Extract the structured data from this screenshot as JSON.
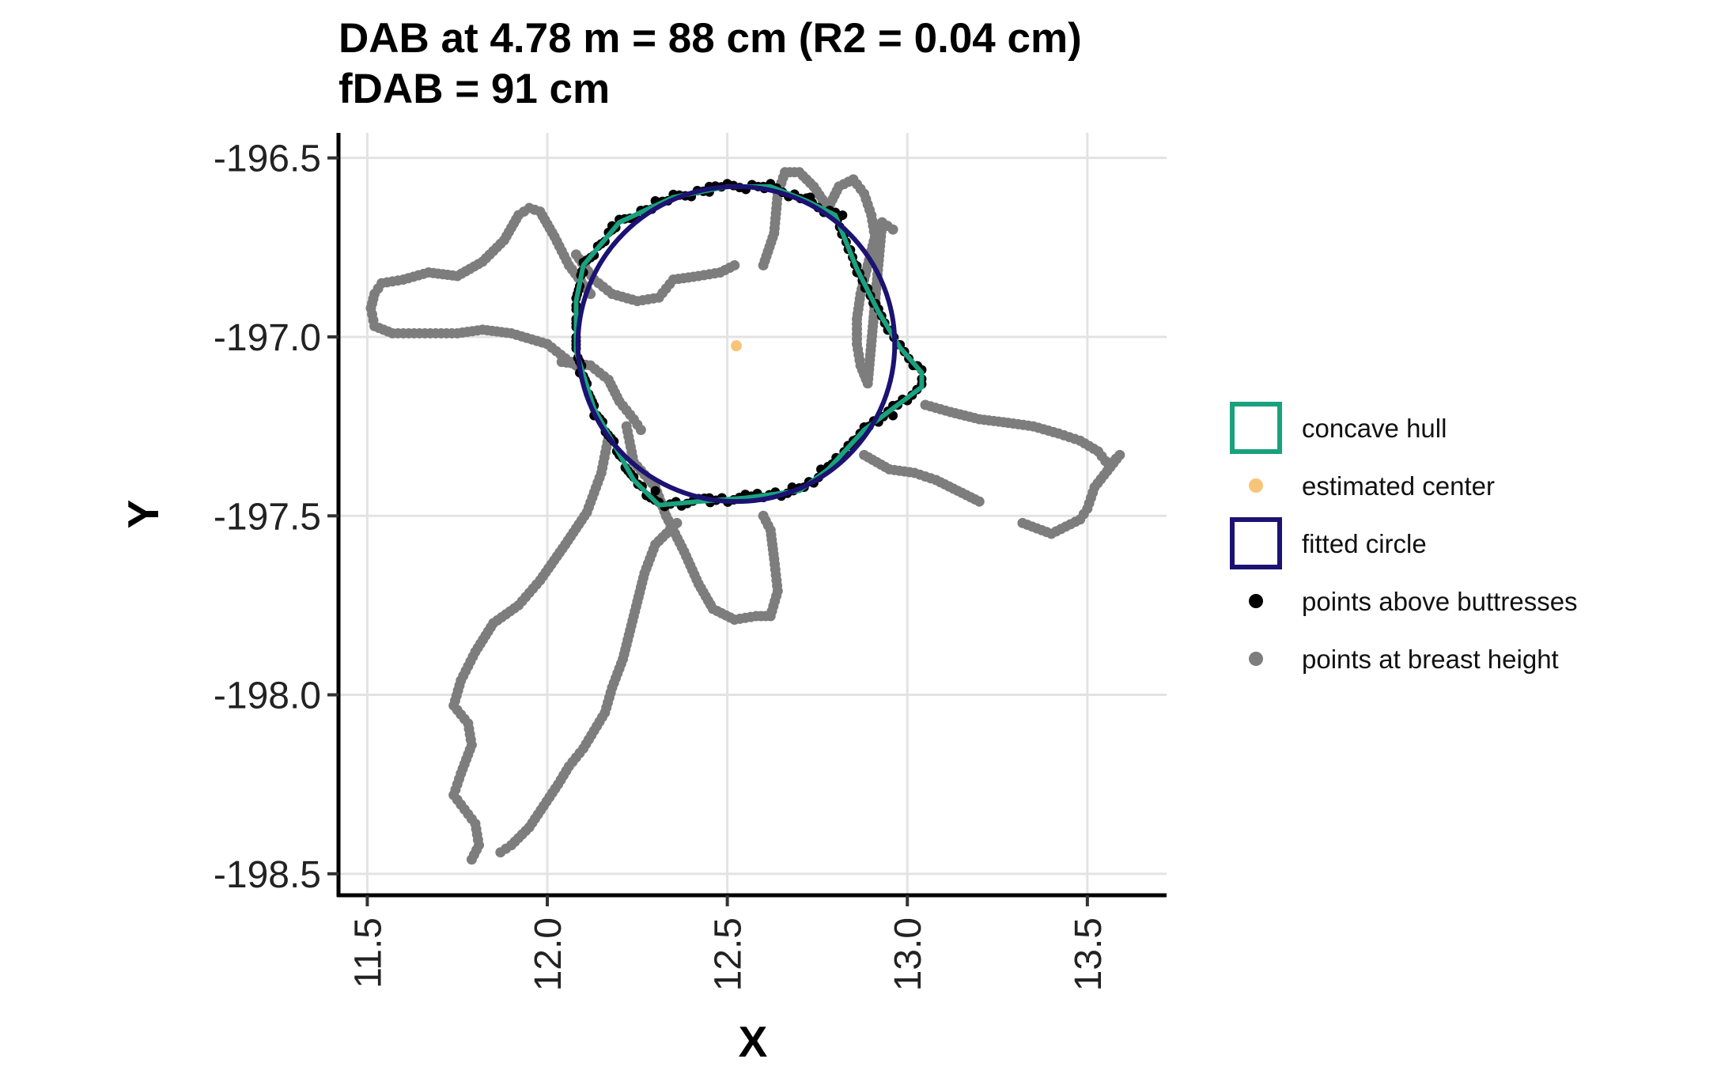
{
  "chart_data": {
    "type": "scatter",
    "title": "DAB at 4.78 m = 88 cm (R2 = 0.04 cm)",
    "subtitle": "fDAB = 91 cm",
    "xlabel": "X",
    "ylabel": "Y",
    "xlim": [
      11.42,
      13.72
    ],
    "ylim": [
      -198.56,
      -196.43
    ],
    "xticks": [
      11.5,
      12.0,
      12.5,
      13.0,
      13.5
    ],
    "yticks": [
      -196.5,
      -197.0,
      -197.5,
      -198.0,
      -198.5
    ],
    "xtick_labels": [
      "11.5",
      "12.0",
      "12.5",
      "13.0",
      "13.5"
    ],
    "ytick_labels": [
      "-196.5",
      "-197.0",
      "-197.5",
      "-198.0",
      "-198.5"
    ],
    "grid": true,
    "legend_position": "right",
    "legend": [
      {
        "key": "concave_hull",
        "label": "concave hull",
        "symbol": "box"
      },
      {
        "key": "estimated_center",
        "label": "estimated center",
        "symbol": "point"
      },
      {
        "key": "fitted_circle",
        "label": "fitted circle",
        "symbol": "box"
      },
      {
        "key": "points_above_buttresses",
        "label": "points above buttresses",
        "symbol": "point"
      },
      {
        "key": "points_at_breast_height",
        "label": "points at breast height",
        "symbol": "point"
      }
    ],
    "colors": {
      "concave_hull": "#1aa17f",
      "estimated_center": "#f8c47a",
      "fitted_circle": "#1c1272",
      "points_above_buttresses": "#000000",
      "points_at_breast_height": "#7d7d7d",
      "grid": "#e3e3e3"
    },
    "estimated_center": [
      12.525,
      -197.025
    ],
    "fitted_circle": {
      "cx": 12.525,
      "cy": -197.02,
      "r": 0.44
    },
    "concave_hull": [
      [
        12.1,
        -196.8
      ],
      [
        12.2,
        -196.68
      ],
      [
        12.35,
        -196.61
      ],
      [
        12.5,
        -196.58
      ],
      [
        12.62,
        -196.58
      ],
      [
        12.72,
        -196.62
      ],
      [
        12.8,
        -196.66
      ],
      [
        12.86,
        -196.81
      ],
      [
        12.92,
        -196.93
      ],
      [
        12.98,
        -197.03
      ],
      [
        13.04,
        -197.1
      ],
      [
        13.04,
        -197.14
      ],
      [
        12.96,
        -197.2
      ],
      [
        12.88,
        -197.26
      ],
      [
        12.78,
        -197.37
      ],
      [
        12.7,
        -197.43
      ],
      [
        12.55,
        -197.45
      ],
      [
        12.42,
        -197.46
      ],
      [
        12.31,
        -197.47
      ],
      [
        12.24,
        -197.4
      ],
      [
        12.13,
        -197.2
      ],
      [
        12.08,
        -197.04
      ],
      [
        12.08,
        -196.9
      ]
    ],
    "points_at_breast_height": [
      {
        "name": "loop-upper-left",
        "points": [
          [
            12.12,
            -196.88
          ],
          [
            12.06,
            -196.8
          ],
          [
            12.02,
            -196.72
          ],
          [
            11.98,
            -196.65
          ],
          [
            11.95,
            -196.64
          ],
          [
            11.92,
            -196.66
          ],
          [
            11.88,
            -196.73
          ],
          [
            11.82,
            -196.79
          ],
          [
            11.75,
            -196.83
          ],
          [
            11.67,
            -196.82
          ],
          [
            11.6,
            -196.84
          ],
          [
            11.54,
            -196.85
          ],
          [
            11.52,
            -196.88
          ],
          [
            11.51,
            -196.92
          ],
          [
            11.52,
            -196.97
          ],
          [
            11.57,
            -196.99
          ],
          [
            11.66,
            -196.99
          ],
          [
            11.75,
            -196.99
          ],
          [
            11.82,
            -196.98
          ],
          [
            11.9,
            -196.99
          ],
          [
            12.0,
            -197.02
          ],
          [
            12.05,
            -197.06
          ],
          [
            12.08,
            -197.08
          ]
        ]
      },
      {
        "name": "inner-cross",
        "points": [
          [
            12.08,
            -196.77
          ],
          [
            12.13,
            -196.84
          ],
          [
            12.18,
            -196.88
          ],
          [
            12.25,
            -196.9
          ],
          [
            12.31,
            -196.89
          ],
          [
            12.35,
            -196.84
          ],
          [
            12.42,
            -196.83
          ],
          [
            12.48,
            -196.82
          ],
          [
            12.52,
            -196.8
          ]
        ]
      },
      {
        "name": "upper-right",
        "points": [
          [
            12.6,
            -196.8
          ],
          [
            12.63,
            -196.71
          ],
          [
            12.64,
            -196.6
          ],
          [
            12.66,
            -196.54
          ],
          [
            12.7,
            -196.54
          ],
          [
            12.74,
            -196.58
          ],
          [
            12.78,
            -196.64
          ],
          [
            12.81,
            -196.58
          ],
          [
            12.85,
            -196.56
          ],
          [
            12.88,
            -196.6
          ],
          [
            12.9,
            -196.66
          ],
          [
            12.91,
            -196.72
          ],
          [
            12.89,
            -196.8
          ],
          [
            12.87,
            -196.88
          ],
          [
            12.86,
            -196.95
          ],
          [
            12.86,
            -197.02
          ],
          [
            12.87,
            -197.08
          ],
          [
            12.89,
            -197.13
          ],
          [
            12.93,
            -196.68
          ],
          [
            12.96,
            -196.7
          ]
        ]
      },
      {
        "name": "right-arm",
        "points": [
          [
            13.05,
            -197.19
          ],
          [
            13.12,
            -197.21
          ],
          [
            13.2,
            -197.23
          ],
          [
            13.28,
            -197.24
          ],
          [
            13.35,
            -197.25
          ],
          [
            13.42,
            -197.27
          ],
          [
            13.48,
            -197.29
          ],
          [
            13.53,
            -197.32
          ],
          [
            13.56,
            -197.36
          ],
          [
            13.59,
            -197.33
          ],
          [
            13.52,
            -197.42
          ],
          [
            13.5,
            -197.48
          ],
          [
            13.48,
            -197.51
          ],
          [
            13.4,
            -197.55
          ],
          [
            13.32,
            -197.52
          ]
        ]
      },
      {
        "name": "lower-right",
        "points": [
          [
            12.88,
            -197.33
          ],
          [
            12.95,
            -197.37
          ],
          [
            13.02,
            -197.38
          ],
          [
            13.08,
            -197.4
          ],
          [
            13.14,
            -197.43
          ],
          [
            13.2,
            -197.46
          ]
        ]
      },
      {
        "name": "mid-lower",
        "points": [
          [
            12.22,
            -197.25
          ],
          [
            12.24,
            -197.35
          ],
          [
            12.3,
            -197.42
          ],
          [
            12.33,
            -197.5
          ],
          [
            12.38,
            -197.6
          ],
          [
            12.42,
            -197.69
          ],
          [
            12.46,
            -197.76
          ],
          [
            12.52,
            -197.79
          ],
          [
            12.58,
            -197.78
          ],
          [
            12.62,
            -197.78
          ],
          [
            12.64,
            -197.71
          ],
          [
            12.63,
            -197.62
          ],
          [
            12.62,
            -197.54
          ],
          [
            12.6,
            -197.5
          ]
        ]
      },
      {
        "name": "lower-left-loop",
        "points": [
          [
            12.17,
            -197.28
          ],
          [
            12.15,
            -197.38
          ],
          [
            12.11,
            -197.49
          ],
          [
            12.05,
            -197.58
          ],
          [
            11.98,
            -197.68
          ],
          [
            11.92,
            -197.75
          ],
          [
            11.85,
            -197.8
          ],
          [
            11.8,
            -197.88
          ],
          [
            11.76,
            -197.96
          ],
          [
            11.74,
            -198.03
          ],
          [
            11.78,
            -198.08
          ],
          [
            11.79,
            -198.14
          ],
          [
            11.76,
            -198.22
          ],
          [
            11.74,
            -198.28
          ],
          [
            11.77,
            -198.32
          ],
          [
            11.8,
            -198.36
          ],
          [
            11.81,
            -198.42
          ],
          [
            11.79,
            -198.46
          ]
        ]
      },
      {
        "name": "long-diagonal",
        "points": [
          [
            12.36,
            -197.52
          ],
          [
            12.3,
            -197.58
          ],
          [
            12.27,
            -197.66
          ],
          [
            12.25,
            -197.74
          ],
          [
            12.23,
            -197.82
          ],
          [
            12.21,
            -197.9
          ],
          [
            12.18,
            -197.98
          ],
          [
            12.16,
            -198.05
          ],
          [
            12.13,
            -198.1
          ],
          [
            12.1,
            -198.15
          ],
          [
            12.06,
            -198.2
          ],
          [
            12.03,
            -198.25
          ],
          [
            11.99,
            -198.31
          ],
          [
            11.95,
            -198.37
          ],
          [
            11.9,
            -198.42
          ],
          [
            11.87,
            -198.44
          ]
        ]
      },
      {
        "name": "left-neck",
        "points": [
          [
            12.04,
            -197.07
          ],
          [
            12.12,
            -197.08
          ],
          [
            12.17,
            -197.12
          ],
          [
            12.2,
            -197.18
          ],
          [
            12.24,
            -197.23
          ],
          [
            12.26,
            -197.26
          ]
        ]
      }
    ],
    "points_above_buttresses": [
      [
        12.08,
        -196.95
      ],
      [
        12.1,
        -196.82
      ],
      [
        12.18,
        -196.69
      ],
      [
        12.3,
        -196.62
      ],
      [
        12.45,
        -196.58
      ],
      [
        12.6,
        -196.58
      ],
      [
        12.73,
        -196.61
      ],
      [
        12.82,
        -196.66
      ],
      [
        12.86,
        -196.82
      ],
      [
        12.96,
        -197.22
      ],
      [
        12.85,
        -197.29
      ],
      [
        12.76,
        -197.37
      ],
      [
        12.68,
        -197.42
      ],
      [
        12.55,
        -197.44
      ],
      [
        12.45,
        -197.45
      ],
      [
        12.3,
        -197.43
      ],
      [
        12.2,
        -197.33
      ],
      [
        12.13,
        -197.22
      ],
      [
        12.09,
        -197.1
      ]
    ]
  }
}
